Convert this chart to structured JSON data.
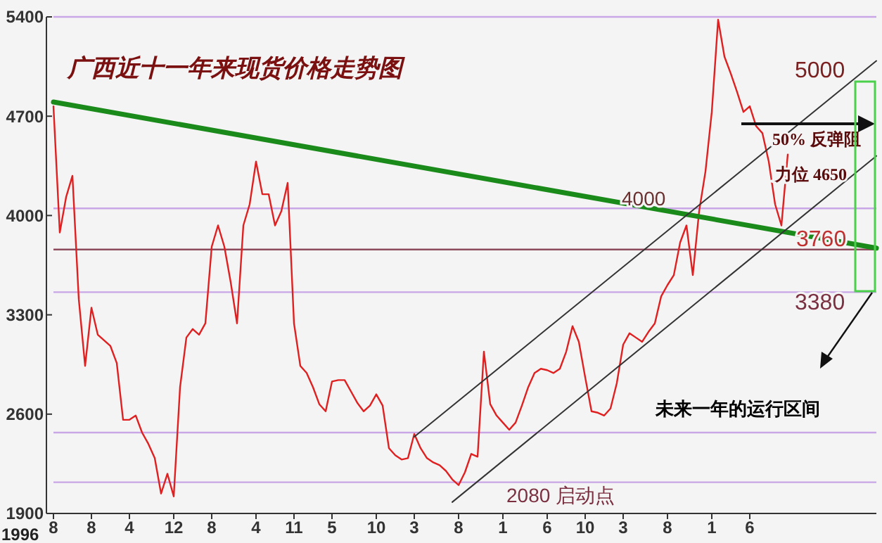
{
  "chart_data": {
    "type": "line",
    "title": "广西近十一年来现货价格走势图",
    "categories": [
      "8",
      null,
      null,
      null,
      null,
      null,
      "8",
      null,
      null,
      null,
      null,
      null,
      "4",
      null,
      null,
      null,
      null,
      null,
      null,
      "12",
      null,
      null,
      null,
      null,
      null,
      "8",
      null,
      null,
      null,
      null,
      null,
      null,
      "4",
      null,
      null,
      null,
      null,
      null,
      "11",
      null,
      null,
      null,
      null,
      null,
      "5",
      null,
      null,
      null,
      null,
      null,
      null,
      "10",
      null,
      null,
      null,
      null,
      null,
      "3",
      null,
      null,
      null,
      null,
      null,
      null,
      "8",
      null,
      null,
      null,
      null,
      null,
      null,
      "1",
      null,
      null,
      null,
      null,
      null,
      null,
      "6",
      null,
      null,
      null,
      null,
      null,
      "10",
      null,
      null,
      null,
      null,
      null,
      "3",
      null,
      null,
      null,
      null,
      null,
      null,
      "8",
      null,
      null,
      null,
      null,
      null,
      null,
      "1",
      null,
      null,
      null,
      null,
      null,
      "6",
      null,
      null,
      null,
      null,
      null,
      null,
      null,
      null,
      null,
      null,
      null,
      null,
      null,
      null,
      null,
      null,
      null,
      null,
      null,
      null
    ],
    "series": [
      {
        "color": "#e02020",
        "values": [
          4770,
          3880,
          4130,
          4280,
          3410,
          2940,
          3350,
          3160,
          3120,
          3080,
          2960,
          2560,
          2560,
          2590,
          2470,
          2390,
          2290,
          2040,
          2180,
          2020,
          2790,
          3140,
          3200,
          3160,
          3240,
          3780,
          3930,
          3780,
          3530,
          3240,
          3930,
          4080,
          4380,
          4150,
          4150,
          3930,
          4030,
          4230,
          3240,
          2940,
          2890,
          2790,
          2670,
          2620,
          2830,
          2840,
          2840,
          2760,
          2680,
          2620,
          2660,
          2740,
          2660,
          2360,
          2310,
          2280,
          2290,
          2460,
          2360,
          2290,
          2260,
          2240,
          2200,
          2140,
          2100,
          2190,
          2320,
          2300,
          3040,
          2670,
          2590,
          2540,
          2490,
          2540,
          2660,
          2790,
          2890,
          2920,
          2910,
          2890,
          2920,
          3040,
          3220,
          3110,
          2860,
          2620,
          2610,
          2590,
          2640,
          2820,
          3090,
          3170,
          3140,
          3110,
          3180,
          3240,
          3430,
          3510,
          3580,
          3810,
          3930,
          3580,
          4030,
          4310,
          4730,
          5380,
          5120,
          5000,
          4870,
          4730,
          4770,
          4630,
          4580,
          4380,
          4080,
          3930,
          4430,
          null,
          null,
          null,
          null,
          null,
          null,
          null,
          null,
          null,
          null,
          null,
          null,
          null,
          null
        ]
      },
      {
        "color": "#1a8a1a",
        "values": [
          4800,
          null,
          null,
          null,
          null,
          null,
          null,
          null,
          null,
          null,
          null,
          null,
          null,
          null,
          null,
          null,
          null,
          null,
          null,
          null,
          null,
          null,
          null,
          null,
          null,
          null,
          null,
          null,
          null,
          null,
          null,
          null,
          null,
          null,
          null,
          null,
          null,
          null,
          null,
          null,
          null,
          null,
          null,
          null,
          null,
          null,
          null,
          null,
          null,
          null,
          null,
          null,
          null,
          null,
          null,
          null,
          null,
          null,
          null,
          null,
          null,
          null,
          null,
          null,
          null,
          null,
          null,
          null,
          null,
          null,
          null,
          null,
          null,
          null,
          null,
          null,
          null,
          null,
          null,
          null,
          null,
          null,
          null,
          null,
          null,
          null,
          null,
          null,
          null,
          null,
          null,
          null,
          null,
          null,
          null,
          null,
          null,
          null,
          null,
          null,
          null,
          null,
          null,
          null,
          null,
          null,
          null,
          null,
          null,
          null,
          null,
          null,
          null,
          null,
          null,
          null,
          null,
          null,
          null,
          null,
          null,
          null,
          null,
          null,
          null,
          null,
          null,
          null,
          null,
          null,
          3770
        ]
      },
      {
        "color": "#333333",
        "values": [
          null,
          null,
          null,
          null,
          null,
          null,
          null,
          null,
          null,
          null,
          null,
          null,
          null,
          null,
          null,
          null,
          null,
          null,
          null,
          null,
          null,
          null,
          null,
          null,
          null,
          null,
          null,
          null,
          null,
          null,
          null,
          null,
          null,
          null,
          null,
          null,
          null,
          null,
          null,
          null,
          null,
          null,
          null,
          null,
          null,
          null,
          null,
          null,
          null,
          null,
          null,
          null,
          null,
          null,
          null,
          null,
          null,
          2440,
          null,
          null,
          null,
          null,
          null,
          null,
          null,
          null,
          null,
          null,
          null,
          null,
          null,
          null,
          null,
          null,
          null,
          null,
          null,
          null,
          null,
          null,
          null,
          null,
          null,
          null,
          null,
          null,
          null,
          null,
          null,
          null,
          null,
          null,
          null,
          null,
          null,
          null,
          null,
          null,
          null,
          null,
          null,
          null,
          null,
          null,
          null,
          null,
          null,
          null,
          null,
          null,
          null,
          null,
          null,
          null,
          null,
          null,
          null,
          null,
          null,
          null,
          null,
          null,
          null,
          null,
          null,
          null,
          null,
          null,
          null,
          null,
          5090
        ]
      },
      {
        "color": "#333333",
        "values": [
          null,
          null,
          null,
          null,
          null,
          null,
          null,
          null,
          null,
          null,
          null,
          null,
          null,
          null,
          null,
          null,
          null,
          null,
          null,
          null,
          null,
          null,
          null,
          null,
          null,
          null,
          null,
          null,
          null,
          null,
          null,
          null,
          null,
          null,
          null,
          null,
          null,
          null,
          null,
          null,
          null,
          null,
          null,
          null,
          null,
          null,
          null,
          null,
          null,
          null,
          null,
          null,
          null,
          null,
          null,
          null,
          null,
          null,
          null,
          null,
          null,
          null,
          null,
          1980,
          null,
          null,
          null,
          null,
          null,
          null,
          null,
          null,
          null,
          null,
          null,
          null,
          null,
          null,
          null,
          null,
          null,
          null,
          null,
          null,
          null,
          null,
          null,
          null,
          null,
          null,
          null,
          null,
          null,
          null,
          null,
          null,
          null,
          null,
          null,
          null,
          null,
          null,
          null,
          null,
          null,
          null,
          null,
          null,
          null,
          null,
          null,
          null,
          null,
          null,
          null,
          null,
          null,
          null,
          null,
          null,
          null,
          null,
          null,
          null,
          null,
          null,
          null,
          null,
          null,
          null,
          4420
        ]
      }
    ],
    "ylim": [
      1900,
      5400
    ],
    "yticks": [
      1900,
      2600,
      3300,
      4000,
      4700,
      5400
    ],
    "ref_lines": [
      {
        "axis": "y",
        "value": 5400,
        "color": "#c9a6e6"
      },
      {
        "axis": "y",
        "value": 4050,
        "color": "#c9a6e6"
      },
      {
        "axis": "y",
        "value": 3760,
        "color": "#8c4a5c"
      },
      {
        "axis": "y",
        "value": 3460,
        "color": "#c9a6e6"
      },
      {
        "axis": "y",
        "value": 2470,
        "color": "#c9a6e6"
      },
      {
        "axis": "y",
        "value": 2120,
        "color": "#c9a6e6"
      }
    ],
    "annotations": [
      "5000",
      "50% 反弹阻",
      "力位 4650",
      "4000",
      "3760",
      "3380",
      "2080 启动点",
      "未来一年的运行区间",
      "1996"
    ]
  }
}
